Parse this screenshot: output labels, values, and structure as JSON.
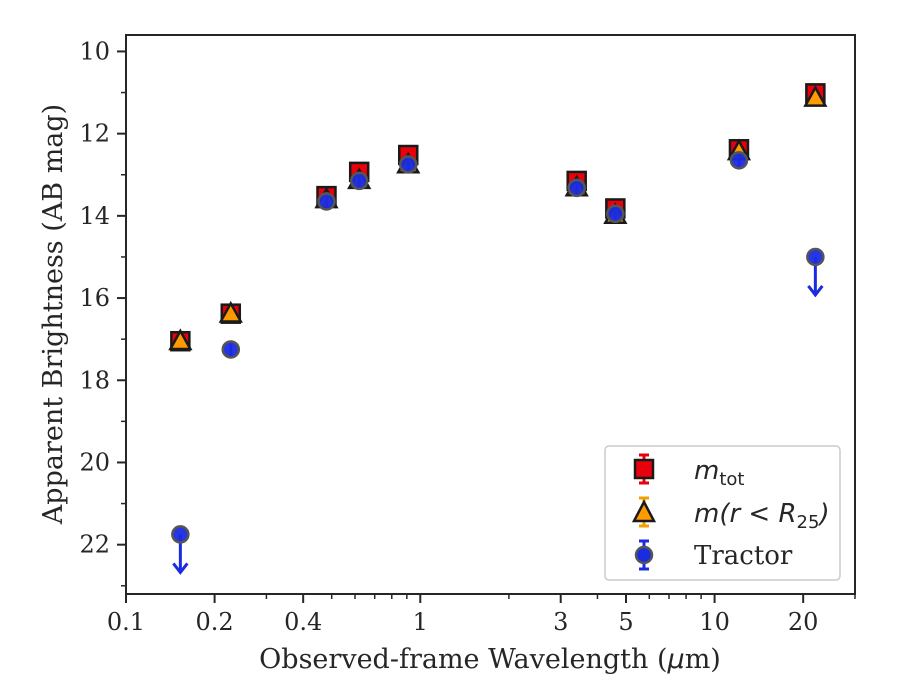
{
  "chart_data": {
    "type": "scatter",
    "xlabel_prefix": "Observed-frame Wavelength (",
    "xlabel_unit_mu": "μ",
    "xlabel_unit_rest": "m)",
    "ylabel": "Apparent Brightness (AB mag)",
    "x_scale": "log",
    "xlim": [
      0.1,
      30
    ],
    "ylim": [
      23.2,
      9.6
    ],
    "y_inverted": true,
    "x_ticks": [
      {
        "value": 0.1,
        "label": "0.1"
      },
      {
        "value": 0.2,
        "label": "0.2"
      },
      {
        "value": 0.4,
        "label": "0.4"
      },
      {
        "value": 1,
        "label": "1"
      },
      {
        "value": 3,
        "label": "3"
      },
      {
        "value": 5,
        "label": "5"
      },
      {
        "value": 10,
        "label": "10"
      },
      {
        "value": 20,
        "label": "20"
      }
    ],
    "x_minor_ticks": [
      0.3,
      0.5,
      0.6,
      0.7,
      0.8,
      0.9,
      2,
      4,
      6,
      7,
      8,
      9,
      30
    ],
    "y_ticks": [
      {
        "value": 10,
        "label": "10"
      },
      {
        "value": 12,
        "label": "12"
      },
      {
        "value": 14,
        "label": "14"
      },
      {
        "value": 16,
        "label": "16"
      },
      {
        "value": 18,
        "label": "18"
      },
      {
        "value": 20,
        "label": "20"
      },
      {
        "value": 22,
        "label": "22"
      }
    ],
    "y_minor_ticks": [
      11,
      13,
      15,
      17,
      19,
      21,
      23
    ],
    "grid": false,
    "legend_position": "lower-right",
    "series": [
      {
        "key": "mtot",
        "legend_math": "m",
        "legend_sub": "tot",
        "marker": "square",
        "fill": "#e8000b",
        "edge": "#1a1a1a",
        "errcolor": "#e8000b",
        "points": [
          {
            "x": 0.153,
            "y": 17.05
          },
          {
            "x": 0.227,
            "y": 16.38
          },
          {
            "x": 0.48,
            "y": 13.52
          },
          {
            "x": 0.62,
            "y": 12.93
          },
          {
            "x": 0.91,
            "y": 12.52
          },
          {
            "x": 3.4,
            "y": 13.15
          },
          {
            "x": 4.6,
            "y": 13.82
          },
          {
            "x": 12.1,
            "y": 12.38
          },
          {
            "x": 22.0,
            "y": 11.02
          }
        ]
      },
      {
        "key": "mr25",
        "legend_math": "m(r < R",
        "legend_sub": "25",
        "legend_close": ")",
        "marker": "triangle",
        "fill": "#ff9a00",
        "edge": "#1a1a1a",
        "errcolor": "#f0a000",
        "points": [
          {
            "x": 0.153,
            "y": 17.02
          },
          {
            "x": 0.227,
            "y": 16.35
          },
          {
            "x": 0.48,
            "y": 13.57
          },
          {
            "x": 0.62,
            "y": 13.1
          },
          {
            "x": 0.91,
            "y": 12.72
          },
          {
            "x": 3.4,
            "y": 13.28
          },
          {
            "x": 4.6,
            "y": 13.95
          },
          {
            "x": 12.1,
            "y": 12.4
          },
          {
            "x": 22.0,
            "y": 11.1
          }
        ]
      },
      {
        "key": "tractor",
        "legend_label": "Tractor",
        "marker": "circle",
        "fill": "#1a2be0",
        "edge": "#555555",
        "errcolor": "#1a2be0",
        "points": [
          {
            "x": 0.153,
            "y": 21.75,
            "upper_limit": true
          },
          {
            "x": 0.227,
            "y": 17.25
          },
          {
            "x": 0.48,
            "y": 13.65
          },
          {
            "x": 0.62,
            "y": 13.15
          },
          {
            "x": 0.91,
            "y": 12.75
          },
          {
            "x": 3.4,
            "y": 13.32
          },
          {
            "x": 4.6,
            "y": 13.95
          },
          {
            "x": 12.1,
            "y": 12.65
          },
          {
            "x": 22.0,
            "y": 15.0,
            "upper_limit": true
          }
        ]
      }
    ]
  }
}
